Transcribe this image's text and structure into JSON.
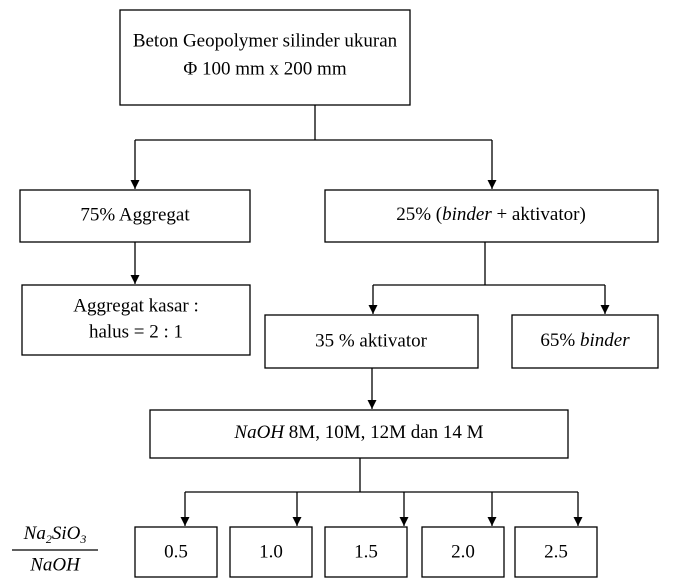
{
  "nodes": [
    {
      "lines": [
        "Beton Geopolymer silinder ukuran",
        "Φ 100 mm x 200 mm"
      ]
    },
    {
      "label": "75% Aggregat"
    },
    {
      "parts": [
        "25% (",
        "binder",
        " + aktivator)"
      ]
    },
    {
      "lines": [
        "Aggregat kasar :",
        "halus = 2 : 1"
      ]
    },
    {
      "label": "35 % aktivator"
    },
    {
      "parts": [
        "65% ",
        "binder"
      ]
    },
    {
      "parts": [
        "NaOH",
        " 8M, 10M, 12M dan 14 M"
      ]
    }
  ],
  "ratio": {
    "numerator": [
      "Na",
      "2",
      "SiO",
      "3"
    ],
    "denominator": "NaOH",
    "values": [
      "0.5",
      "1.0",
      "1.5",
      "2.0",
      "2.5"
    ]
  }
}
